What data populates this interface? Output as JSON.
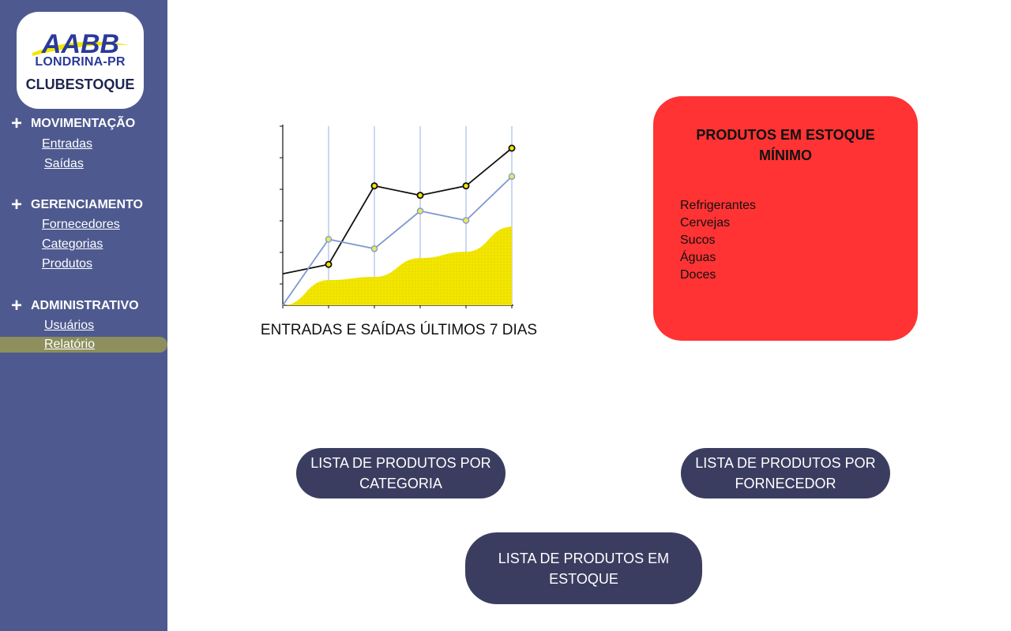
{
  "logo": {
    "mark": "AABB",
    "subtitle": "LONDRINA-PR",
    "app_name": "CLUBESTOQUE"
  },
  "sidebar": {
    "sections": [
      {
        "title": "MOVIMENTAÇÃO",
        "items": [
          "Entradas",
          "Saídas"
        ]
      },
      {
        "title": "GERENCIAMENTO",
        "items": [
          "Fornecedores",
          "Categorias",
          "Produtos"
        ]
      },
      {
        "title": "ADMINISTRATIVO",
        "items": [
          "Usuários",
          "Relatório"
        ]
      }
    ],
    "active_item": "Relatório",
    "active_color": "#8d8f5c"
  },
  "chart_data": {
    "type": "line",
    "title": "ENTRADAS E SAÍDAS ÚLTIMOS 7 DIAS",
    "x": [
      0,
      1,
      2,
      3,
      4,
      5
    ],
    "series": [
      {
        "values": [
          1.0,
          1.3,
          3.8,
          3.5,
          3.8,
          5.0
        ],
        "color": "#111111"
      },
      {
        "values": [
          0.0,
          2.1,
          1.8,
          3.0,
          2.7,
          4.1
        ],
        "color": "#7f98d0"
      },
      {
        "values": [
          0.0,
          0.8,
          0.9,
          1.5,
          1.7,
          2.5
        ],
        "color": "#f2e600",
        "style": "area"
      }
    ],
    "ylim": [
      0,
      5.7
    ],
    "grid": "vertical"
  },
  "min_stock": {
    "title": "PRODUTOS EM ESTOQUE MÍNIMO",
    "items": [
      "Refrigerantes",
      "Cervejas",
      "Sucos",
      "Águas",
      "Doces"
    ]
  },
  "buttons": {
    "by_category": "LISTA DE PRODUTOS POR CATEGORIA",
    "by_supplier": "LISTA DE PRODUTOS POR FORNECEDOR",
    "in_stock": "LISTA DE PRODUTOS EM ESTOQUE"
  }
}
